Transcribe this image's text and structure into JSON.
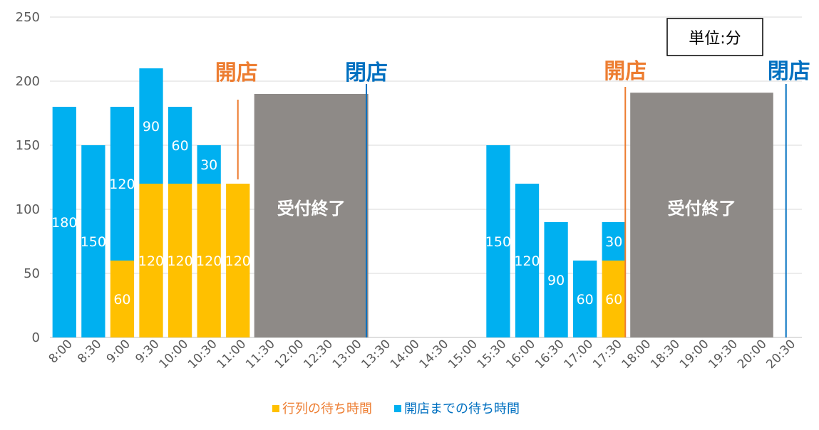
{
  "chart_data": {
    "type": "bar",
    "stacked": true,
    "categories": [
      "8:00",
      "8:30",
      "9:00",
      "9:30",
      "10:00",
      "10:30",
      "11:00",
      "11:30",
      "12:00",
      "12:30",
      "13:00",
      "13:30",
      "14:00",
      "14:30",
      "15:00",
      "15:30",
      "16:00",
      "16:30",
      "17:00",
      "17:30",
      "18:00",
      "18:30",
      "19:00",
      "19:30",
      "20:00",
      "20:30"
    ],
    "series": [
      {
        "name": "行列の待ち時間",
        "color": "#ffc000",
        "values": [
          0,
          0,
          60,
          120,
          120,
          120,
          120,
          null,
          null,
          null,
          null,
          null,
          null,
          null,
          null,
          0,
          0,
          0,
          0,
          60,
          null,
          null,
          null,
          null,
          null,
          null
        ],
        "labels": [
          null,
          null,
          "60",
          "120",
          "120",
          "120",
          "120",
          null,
          null,
          null,
          null,
          null,
          null,
          null,
          null,
          null,
          null,
          null,
          null,
          "60",
          null,
          null,
          null,
          null,
          null,
          null
        ]
      },
      {
        "name": "開店までの待ち時間",
        "color": "#00b0f0",
        "values": [
          180,
          150,
          120,
          90,
          60,
          30,
          0,
          null,
          null,
          null,
          null,
          null,
          null,
          null,
          null,
          150,
          120,
          90,
          60,
          30,
          null,
          null,
          null,
          null,
          null,
          null
        ],
        "labels": [
          "180",
          "150",
          "120",
          "90",
          "60",
          "30",
          null,
          null,
          null,
          null,
          null,
          null,
          null,
          null,
          null,
          "150",
          "120",
          "90",
          "60",
          "30",
          null,
          null,
          null,
          null,
          null,
          null
        ]
      }
    ],
    "ylim": [
      0,
      250
    ],
    "yticks": [
      0,
      50,
      100,
      150,
      200,
      250
    ],
    "grid": true,
    "legend_position": "bottom",
    "unit_label": "単位:分",
    "closed_periods": [
      {
        "from": "11:30",
        "to": "13:00",
        "value": 190,
        "label": "受付終了",
        "color": "#8e8a87"
      },
      {
        "from": "18:00",
        "to": "20:00",
        "value": 191,
        "label": "受付終了",
        "color": "#8e8a87"
      }
    ],
    "markers": [
      {
        "label": "開店",
        "at": "11:00",
        "color": "#ed7d31"
      },
      {
        "label": "閉店",
        "at": "13:00",
        "color": "#0070c0"
      },
      {
        "label": "開店",
        "at": "17:30",
        "color": "#ed7d31"
      },
      {
        "label": "閉店",
        "at": "20:30",
        "color": "#0070c0"
      }
    ]
  }
}
